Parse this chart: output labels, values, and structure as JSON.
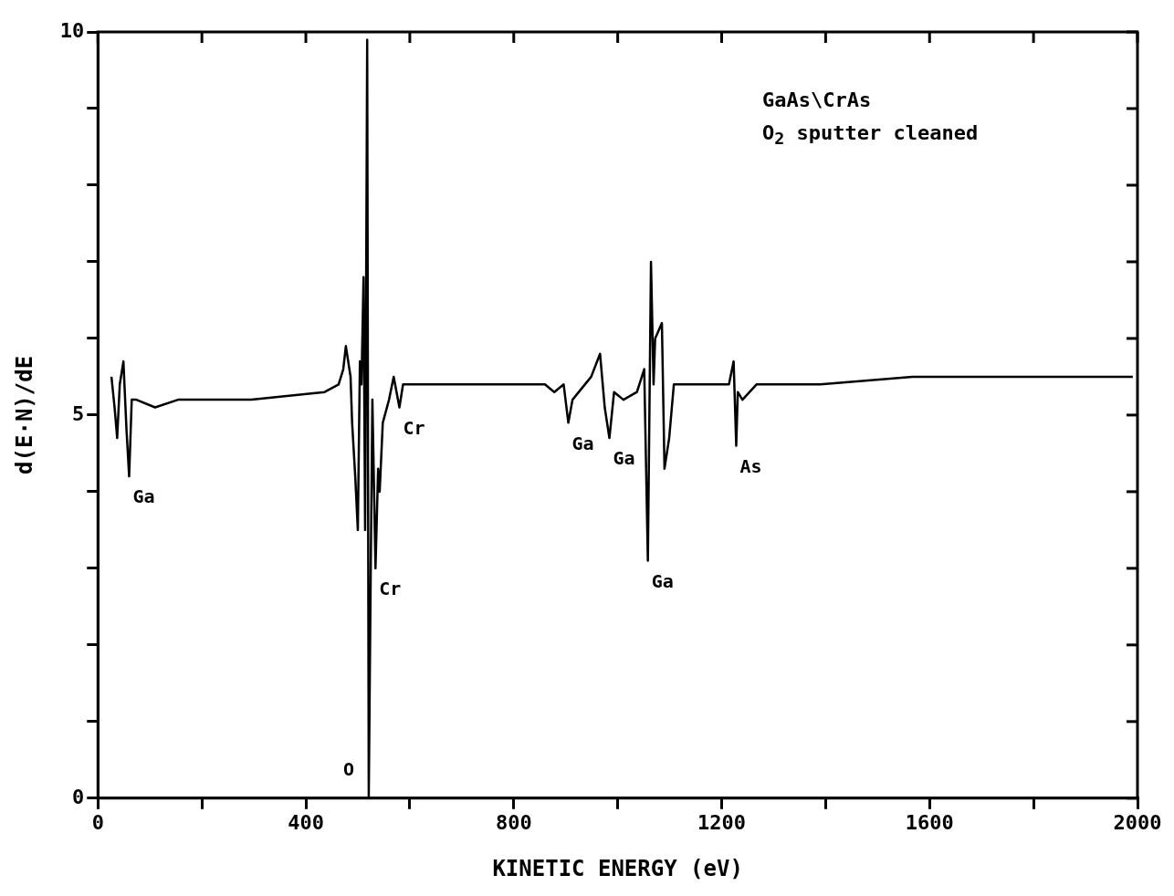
{
  "chart_data": {
    "type": "line",
    "xlabel": "KINETIC ENERGY (eV)",
    "ylabel": "d(E·N)/dE",
    "series": [
      {
        "color": "#000000",
        "x": [
          26,
          32,
          37,
          42,
          49,
          55,
          60,
          65,
          74,
          110,
          154,
          295,
          436,
          463,
          472,
          477,
          486,
          489,
          495,
          500,
          504,
          507,
          511,
          514,
          518,
          521,
          525,
          528,
          534,
          539,
          542,
          548,
          560,
          569,
          580,
          587,
          613,
          860,
          878,
          896,
          905,
          913,
          949,
          966,
          975,
          984,
          993,
          1011,
          1037,
          1051,
          1058,
          1064,
          1069,
          1072,
          1085,
          1090,
          1099,
          1108,
          1178,
          1214,
          1223,
          1228,
          1231,
          1240,
          1267,
          1390,
          1567,
          1744,
          1991
        ],
        "values": [
          5.5,
          5.1,
          4.7,
          5.4,
          5.7,
          4.8,
          4.2,
          5.2,
          5.2,
          5.1,
          5.2,
          5.2,
          5.3,
          5.4,
          5.6,
          5.9,
          5.5,
          4.9,
          4.2,
          3.5,
          5.7,
          5.4,
          6.8,
          3.5,
          9.9,
          0,
          3.1,
          5.2,
          3.0,
          4.3,
          4.0,
          4.9,
          5.2,
          5.5,
          5.1,
          5.4,
          5.4,
          5.4,
          5.3,
          5.4,
          4.9,
          5.2,
          5.5,
          5.8,
          5.1,
          4.7,
          5.3,
          5.2,
          5.3,
          5.6,
          3.1,
          7.0,
          5.4,
          6.0,
          6.2,
          4.3,
          4.7,
          5.4,
          5.4,
          5.4,
          5.7,
          4.6,
          5.3,
          5.2,
          5.4,
          5.4,
          5.5,
          5.5,
          5.5
        ]
      }
    ],
    "xlim": [
      0,
      2000
    ],
    "xticks": [
      0,
      {
        "value": 200,
        "label": null
      },
      400,
      {
        "value": 600,
        "label": null
      },
      800,
      {
        "value": 1000,
        "label": null
      },
      1200,
      {
        "value": 1400,
        "label": null
      },
      1600,
      {
        "value": 1800,
        "label": null
      },
      2000
    ],
    "ylim": [
      0,
      10
    ],
    "yticks": [
      0,
      {
        "value": 1,
        "label": null
      },
      {
        "value": 2,
        "label": null
      },
      {
        "value": 3,
        "label": null
      },
      {
        "value": 4,
        "label": null
      },
      5,
      {
        "value": 6,
        "label": null
      },
      {
        "value": 7,
        "label": null
      },
      {
        "value": 8,
        "label": null
      },
      {
        "value": 9,
        "label": null
      },
      10
    ],
    "grid": false,
    "legend": false,
    "marker": "none",
    "line_style": "solid",
    "annotations": [
      "GaAs\\CrAs",
      "O$_{2}$ sputter cleaned",
      {
        "text": "Ga",
        "x": 60,
        "y": 4.2
      },
      {
        "text": "O",
        "x": 521,
        "y": 0
      },
      {
        "text": "Cr",
        "x": 580,
        "y": 5.1
      },
      {
        "text": "Cr",
        "x": 534,
        "y": 3.0
      },
      {
        "text": "Ga",
        "x": 905,
        "y": 4.9
      },
      {
        "text": "Ga",
        "x": 984,
        "y": 4.7
      },
      {
        "text": "Ga",
        "x": 1058,
        "y": 3.1
      },
      {
        "text": "As",
        "x": 1228,
        "y": 4.6
      }
    ]
  }
}
